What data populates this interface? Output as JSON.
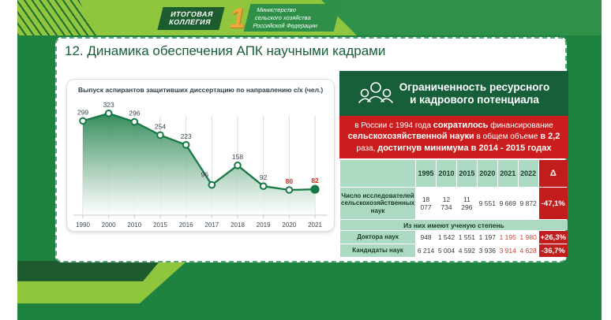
{
  "header": {
    "badge_line1": "ИТОГОВАЯ",
    "badge_line2": "КОЛЛЕГИЯ",
    "numeral": "1",
    "ministry_line1": "Министерство",
    "ministry_line2": "сельского хозяйства",
    "ministry_line3": "Российской Федерации"
  },
  "slide_title": "12. Динамика обеспечения АПК научными кадрами",
  "chart_data": {
    "type": "area",
    "title": "Выпуск аспирантов защитивших диссертацию по направлению с/х (чел.)",
    "categories": [
      "1990",
      "2000",
      "2010",
      "2015",
      "2016",
      "2017",
      "2018",
      "2019",
      "2020",
      "2021"
    ],
    "values": [
      299,
      323,
      296,
      254,
      223,
      96,
      158,
      92,
      80,
      82
    ],
    "red_value_indexes": [
      8,
      9
    ],
    "xlabel": "",
    "ylabel": "",
    "ylim": [
      0,
      350
    ],
    "grid": true,
    "legend": false,
    "line_color": "#177a46",
    "marker_fill": "#ffffff",
    "last_marker_fill": "#177a46",
    "red_label_color": "#d22b1f",
    "label_color": "#39454e"
  },
  "right_panel": {
    "title_line1": "Ограниченность ресурсного",
    "title_line2": "и кадрового потенциала",
    "icon": "people-group-icon",
    "callout": {
      "seg1": "в России с 1994 года ",
      "seg2": "сократилось",
      "seg3": " финансирование ",
      "seg4": "сельскохозяйственной науки",
      "seg5": " в общем объеме ",
      "seg6": "в 2,2",
      "seg7": " раза, ",
      "seg8": "достигнув минимума в 2014 - 2015 годах"
    },
    "table": {
      "years": [
        "1995",
        "2010",
        "2015",
        "2020",
        "2021",
        "2022"
      ],
      "delta_label": "Δ",
      "row1": {
        "label": "Число исследователей сельскохозяйственных наук",
        "values": [
          "18 077",
          "12 734",
          "11 296",
          "9 551",
          "9 669",
          "9 872"
        ],
        "delta": "-47,1%"
      },
      "span_row": "Из них имеют ученую степень",
      "row2": {
        "label": "Доктора наук",
        "values": [
          "948",
          "1 542",
          "1 551",
          "1 197",
          "1 195",
          "1 980"
        ],
        "delta": "+26,3%"
      },
      "row3": {
        "label": "Кандидаты наук",
        "values": [
          "6 214",
          "5 004",
          "4 592",
          "3 936",
          "3 914",
          "4 628"
        ],
        "delta": "-36,7%"
      }
    }
  },
  "colors": {
    "main_green": "#1e8240",
    "dark_green": "#175f38",
    "light_green_band": "#8fc63e",
    "red_band": "#cb1d1d",
    "table_header_green": "#abd9c1",
    "gold": "#eca73c"
  }
}
